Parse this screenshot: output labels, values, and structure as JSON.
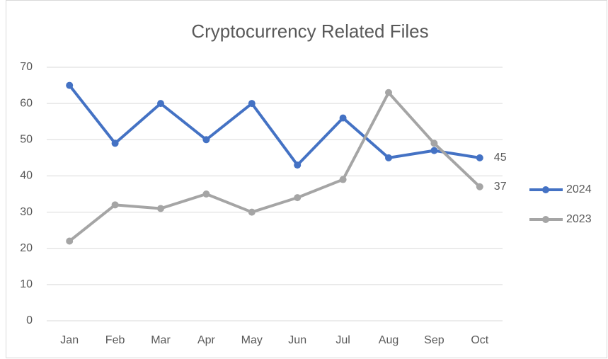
{
  "chart_data": {
    "type": "line",
    "title": "Cryptocurrency Related Files",
    "categories": [
      "Jan",
      "Feb",
      "Mar",
      "Apr",
      "May",
      "Jun",
      "Jul",
      "Aug",
      "Sep",
      "Oct"
    ],
    "series": [
      {
        "name": "2024",
        "color": "#4472c4",
        "values": [
          65,
          49,
          60,
          50,
          60,
          43,
          56,
          45,
          47,
          45
        ]
      },
      {
        "name": "2023",
        "color": "#a5a5a5",
        "values": [
          22,
          32,
          31,
          35,
          30,
          34,
          39,
          63,
          49,
          37
        ]
      }
    ],
    "ylim": [
      0,
      70
    ],
    "yticks": [
      0,
      10,
      20,
      30,
      40,
      50,
      60,
      70
    ],
    "grid": true,
    "legend": "right"
  }
}
